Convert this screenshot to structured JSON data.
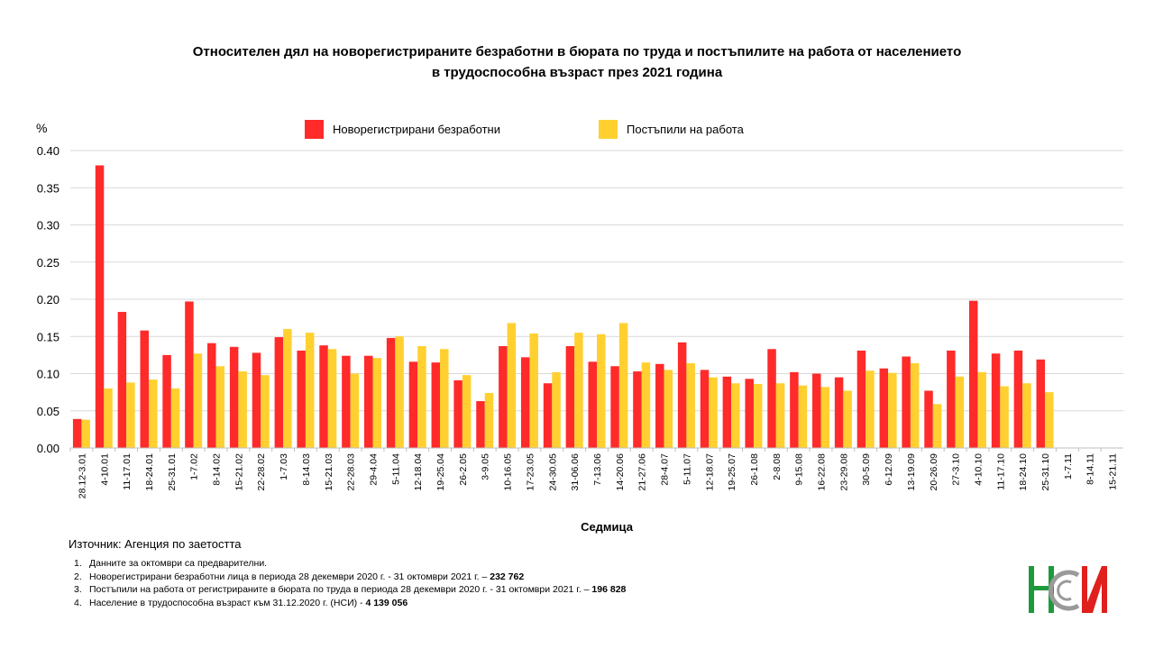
{
  "title": {
    "line1": "Относителен дял на новорегистрираните безработни в бюрата по труда и постъпилите на работа от населението",
    "line2": "в трудоспособна възраст през 2021 година"
  },
  "colors": {
    "series1": "#ff2a2a",
    "series2": "#ffd030",
    "grid": "#d9d9d9"
  },
  "chart_data": {
    "type": "bar",
    "title": "Относителен дял на новорегистрираните безработни в бюрата по труда и постъпилите на работа от населението в трудоспособна възраст през 2021 година",
    "xlabel": "Седмица",
    "ylabel": "%",
    "ylim": [
      0,
      0.4
    ],
    "yticks": [
      "0.00",
      "0.05",
      "0.10",
      "0.15",
      "0.20",
      "0.25",
      "0.30",
      "0.35",
      "0.40"
    ],
    "grid": true,
    "legend_position": "top",
    "categories": [
      "28.12-3.01",
      "4-10.01",
      "11-17.01",
      "18-24.01",
      "25-31.01",
      "1-7.02",
      "8-14.02",
      "15-21.02",
      "22-28.02",
      "1-7.03",
      "8-14.03",
      "15-21.03",
      "22-28.03",
      "29-4.04",
      "5-11.04",
      "12-18.04",
      "19-25.04",
      "26-2.05",
      "3-9.05",
      "10-16.05",
      "17-23.05",
      "24-30.05",
      "31-06.06",
      "7-13.06",
      "14-20.06",
      "21-27.06",
      "28-4.07",
      "5-11.07",
      "12-18.07",
      "19-25.07",
      "26-1.08",
      "2-8.08",
      "9-15.08",
      "16-22.08",
      "23-29.08",
      "30-5.09",
      "6-12.09",
      "13-19.09",
      "20-26.09",
      "27-3.10",
      "4-10.10",
      "11-17.10",
      "18-24.10",
      "25-31.10",
      "1-7.11",
      "8-14.11",
      "15-21.11"
    ],
    "series": [
      {
        "name": "Новорегистрирани безработни",
        "values": [
          0.039,
          0.38,
          0.183,
          0.158,
          0.125,
          0.197,
          0.141,
          0.136,
          0.128,
          0.149,
          0.131,
          0.138,
          0.124,
          0.124,
          0.148,
          0.116,
          0.115,
          0.091,
          0.063,
          0.137,
          0.122,
          0.087,
          0.137,
          0.116,
          0.11,
          0.103,
          0.113,
          0.142,
          0.105,
          0.096,
          0.093,
          0.133,
          0.102,
          0.1,
          0.095,
          0.131,
          0.107,
          0.123,
          0.077,
          0.131,
          0.198,
          0.127,
          0.131,
          0.119,
          null,
          null,
          null
        ]
      },
      {
        "name": "Постъпили на работа",
        "values": [
          0.038,
          0.08,
          0.088,
          0.092,
          0.08,
          0.127,
          0.11,
          0.103,
          0.098,
          0.16,
          0.155,
          0.133,
          0.1,
          0.121,
          0.15,
          0.137,
          0.133,
          0.098,
          0.074,
          0.168,
          0.154,
          0.102,
          0.155,
          0.153,
          0.168,
          0.115,
          0.105,
          0.114,
          0.095,
          0.087,
          0.086,
          0.087,
          0.084,
          0.082,
          0.077,
          0.104,
          0.101,
          0.114,
          0.059,
          0.096,
          0.102,
          0.083,
          0.087,
          0.075,
          null,
          null,
          null
        ]
      }
    ]
  },
  "source": "Източник: Агенция по заетостта",
  "notes": [
    {
      "num": "1.",
      "text": "Данните за октомври са предварителни.",
      "bold": ""
    },
    {
      "num": "2.",
      "text": "Новорегистрирани безработни лица в периода 28 декември  2020 г. - 31 октомври 2021 г. – ",
      "bold": "232 762"
    },
    {
      "num": "3.",
      "text": "Постъпили на работа от регистрираните в бюрата по труда в периода 28 декември  2020 г. - 31 октомври 2021 г. – ",
      "bold": "196 828"
    },
    {
      "num": "4.",
      "text": "Население в трудоспособна възраст към 31.12.2020 г. (НСИ)  - ",
      "bold": "4 139 056"
    }
  ],
  "logo": {
    "text": "НСИ"
  }
}
